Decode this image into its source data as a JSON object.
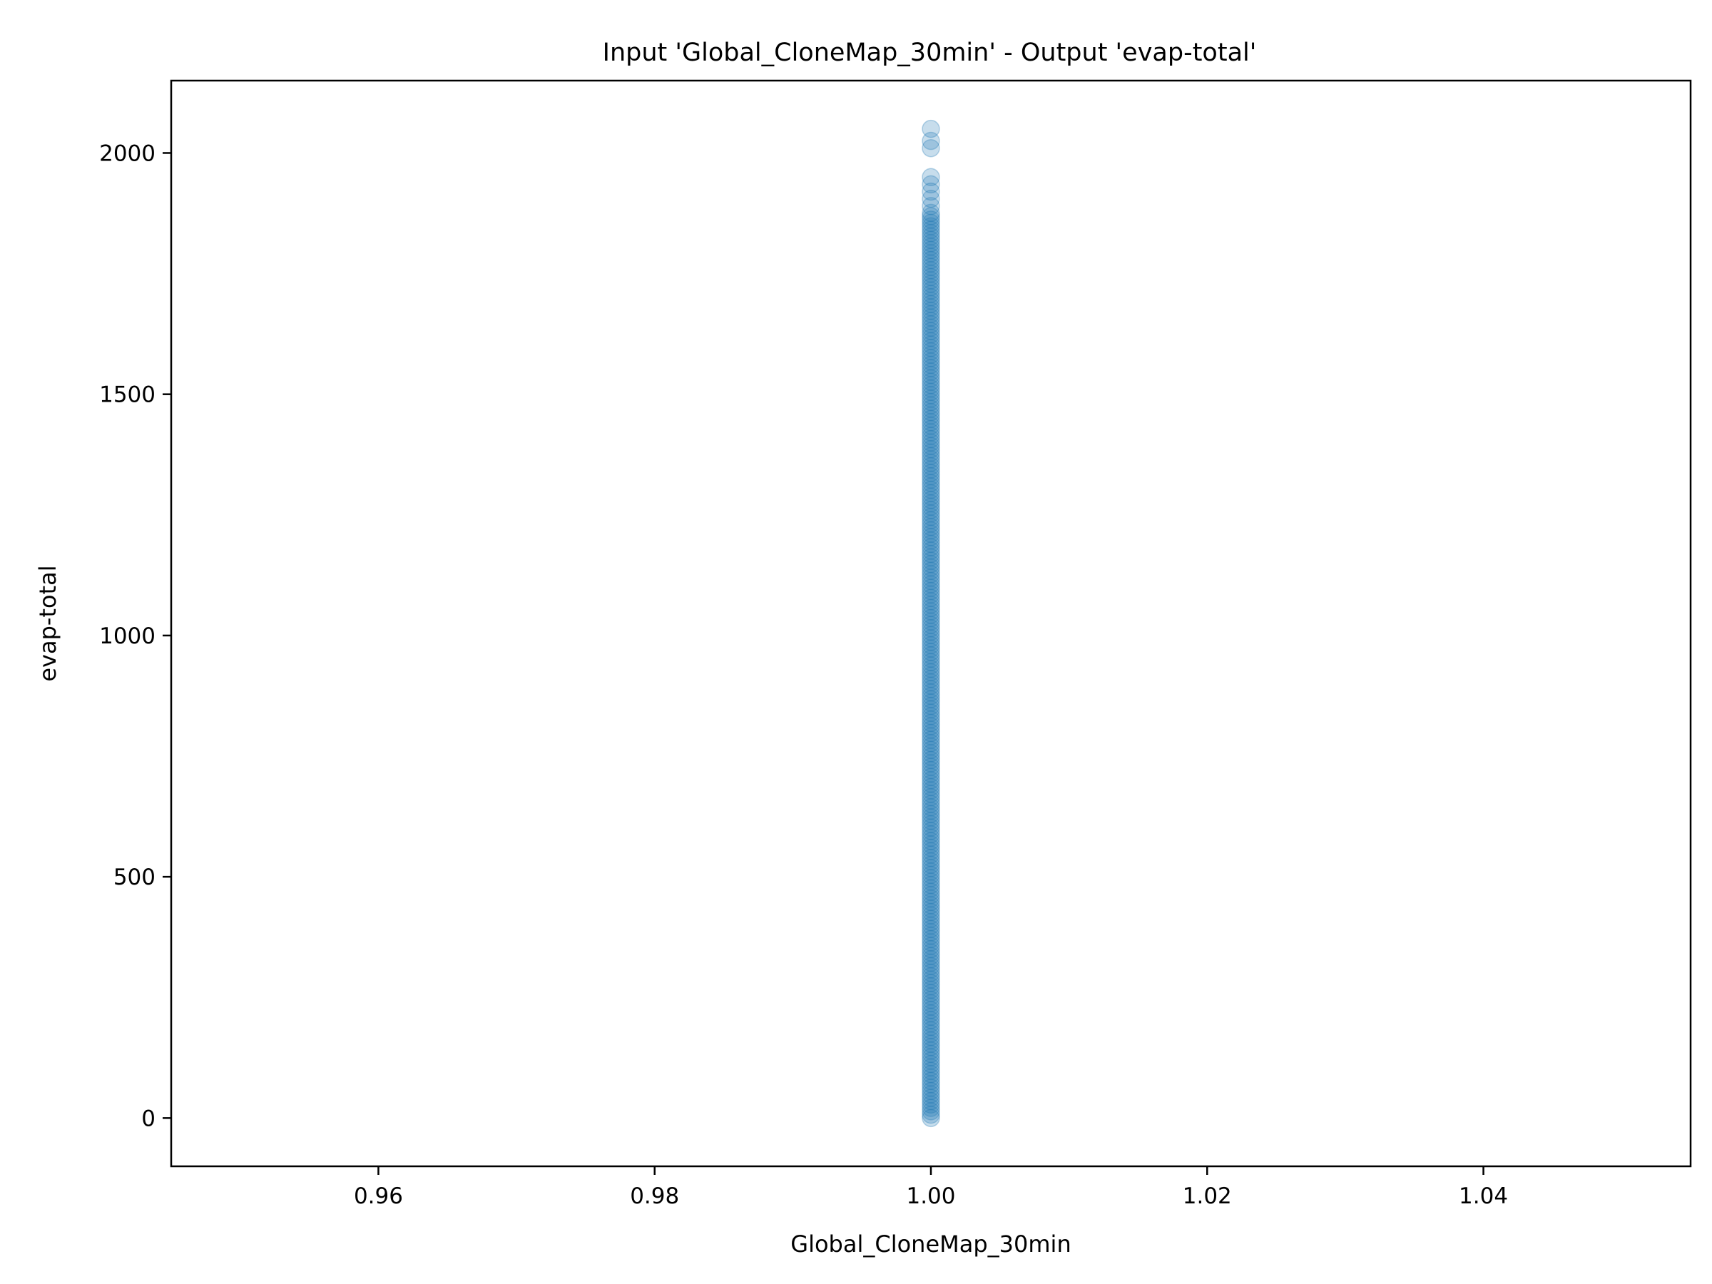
{
  "chart_data": {
    "type": "scatter",
    "title": "Input 'Global_CloneMap_30min' - Output 'evap-total'",
    "xlabel": "Global_CloneMap_30min",
    "ylabel": "evap-total",
    "xlim": [
      0.945,
      1.055
    ],
    "ylim": [
      -100,
      2150
    ],
    "xticks": [
      0.96,
      0.98,
      1.0,
      1.02,
      1.04
    ],
    "xtick_labels": [
      "0.96",
      "0.98",
      "1.00",
      "1.02",
      "1.04"
    ],
    "yticks": [
      0,
      500,
      1000,
      1500,
      2000
    ],
    "ytick_labels": [
      "0",
      "500",
      "1000",
      "1500",
      "2000"
    ],
    "grid": false,
    "series": [
      {
        "color": "#1f77b4",
        "alpha": 0.25,
        "x_constant": 1.0,
        "dense_range": [
          0,
          1880
        ],
        "sparse_points": [
          {
            "x": 1.0,
            "y": 1890
          },
          {
            "x": 1.0,
            "y": 1905
          },
          {
            "x": 1.0,
            "y": 1920
          },
          {
            "x": 1.0,
            "y": 1935
          },
          {
            "x": 1.0,
            "y": 1950
          },
          {
            "x": 1.0,
            "y": 2010
          },
          {
            "x": 1.0,
            "y": 2025
          },
          {
            "x": 1.0,
            "y": 2050
          }
        ]
      }
    ]
  }
}
